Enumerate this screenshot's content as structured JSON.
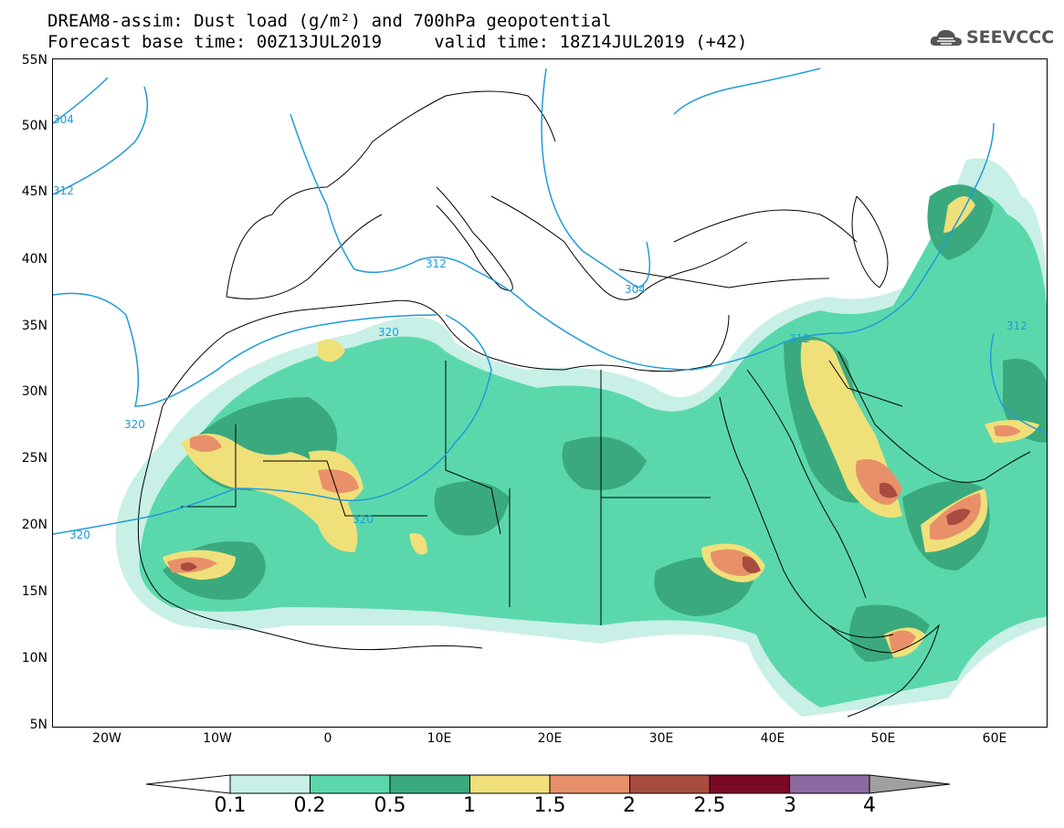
{
  "title_line1": "DREAM8-assim: Dust load (g/m²) and 700hPa geopotential",
  "title_line2": "Forecast base time: 00Z13JUL2019     valid time: 18Z14JUL2019 (+42)",
  "logo": {
    "icon": "cloud-icon",
    "text": "SEEVCCC"
  },
  "lat_labels": [
    "55N",
    "50N",
    "45N",
    "40N",
    "35N",
    "30N",
    "25N",
    "20N",
    "15N",
    "10N",
    "5N"
  ],
  "lon_labels": [
    "20W",
    "10W",
    "0",
    "10E",
    "20E",
    "30E",
    "40E",
    "50E",
    "60E"
  ],
  "contour_labels": [
    "304",
    "312",
    "320",
    "312",
    "304",
    "312",
    "320",
    "320",
    "320",
    "312",
    "312"
  ],
  "colorbar": {
    "ticks": [
      "0.1",
      "0.2",
      "0.5",
      "1",
      "1.5",
      "2",
      "2.5",
      "3",
      "4"
    ],
    "colors": [
      "#c8f0e6",
      "#5ad8ac",
      "#3aaa7e",
      "#f0e07a",
      "#e8906a",
      "#a84c40",
      "#7a0a24",
      "#8a6aa0",
      "#a0a0a0"
    ]
  },
  "colors": {
    "geopotential_line": "#1e9bd8",
    "coast": "#000000"
  }
}
